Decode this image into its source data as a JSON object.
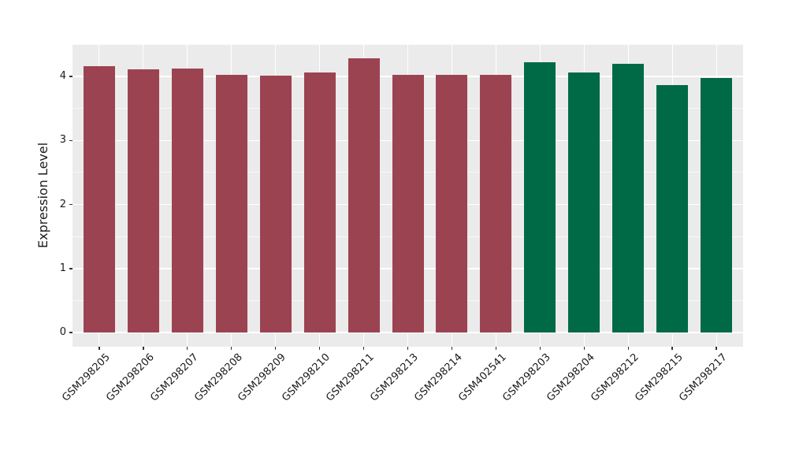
{
  "figure": {
    "background_color": "#FFFFFF",
    "panel_color": "#EBEBEB",
    "grid_color": "#FFFFFF",
    "tick_mark_color": "#333333",
    "text_color": "#1A1A1A"
  },
  "chart_data": {
    "type": "bar",
    "title": "",
    "xlabel": "",
    "ylabel": "Expression Level",
    "ylim": [
      0,
      4.5
    ],
    "yticks": [
      0,
      1,
      2,
      3,
      4
    ],
    "yticks_minor": [
      0.5,
      1.5,
      2.5,
      3.5,
      4.5
    ],
    "grid": "on",
    "legend": "none",
    "x_tick_rotation_deg": 45,
    "categories": [
      "GSM298205",
      "GSM298206",
      "GSM298207",
      "GSM298208",
      "GSM298209",
      "GSM298210",
      "GSM298211",
      "GSM298213",
      "GSM298214",
      "GSM402541",
      "GSM298203",
      "GSM298204",
      "GSM298212",
      "GSM298215",
      "GSM298217"
    ],
    "values": [
      4.16,
      4.11,
      4.12,
      4.03,
      4.01,
      4.06,
      4.28,
      4.03,
      4.03,
      4.03,
      4.22,
      4.06,
      4.2,
      3.87,
      3.97
    ],
    "bar_colors": [
      "#9C4351",
      "#9C4351",
      "#9C4351",
      "#9C4351",
      "#9C4351",
      "#9C4351",
      "#9C4351",
      "#9C4351",
      "#9C4351",
      "#9C4351",
      "#006946",
      "#006946",
      "#006946",
      "#006946",
      "#006946"
    ]
  }
}
